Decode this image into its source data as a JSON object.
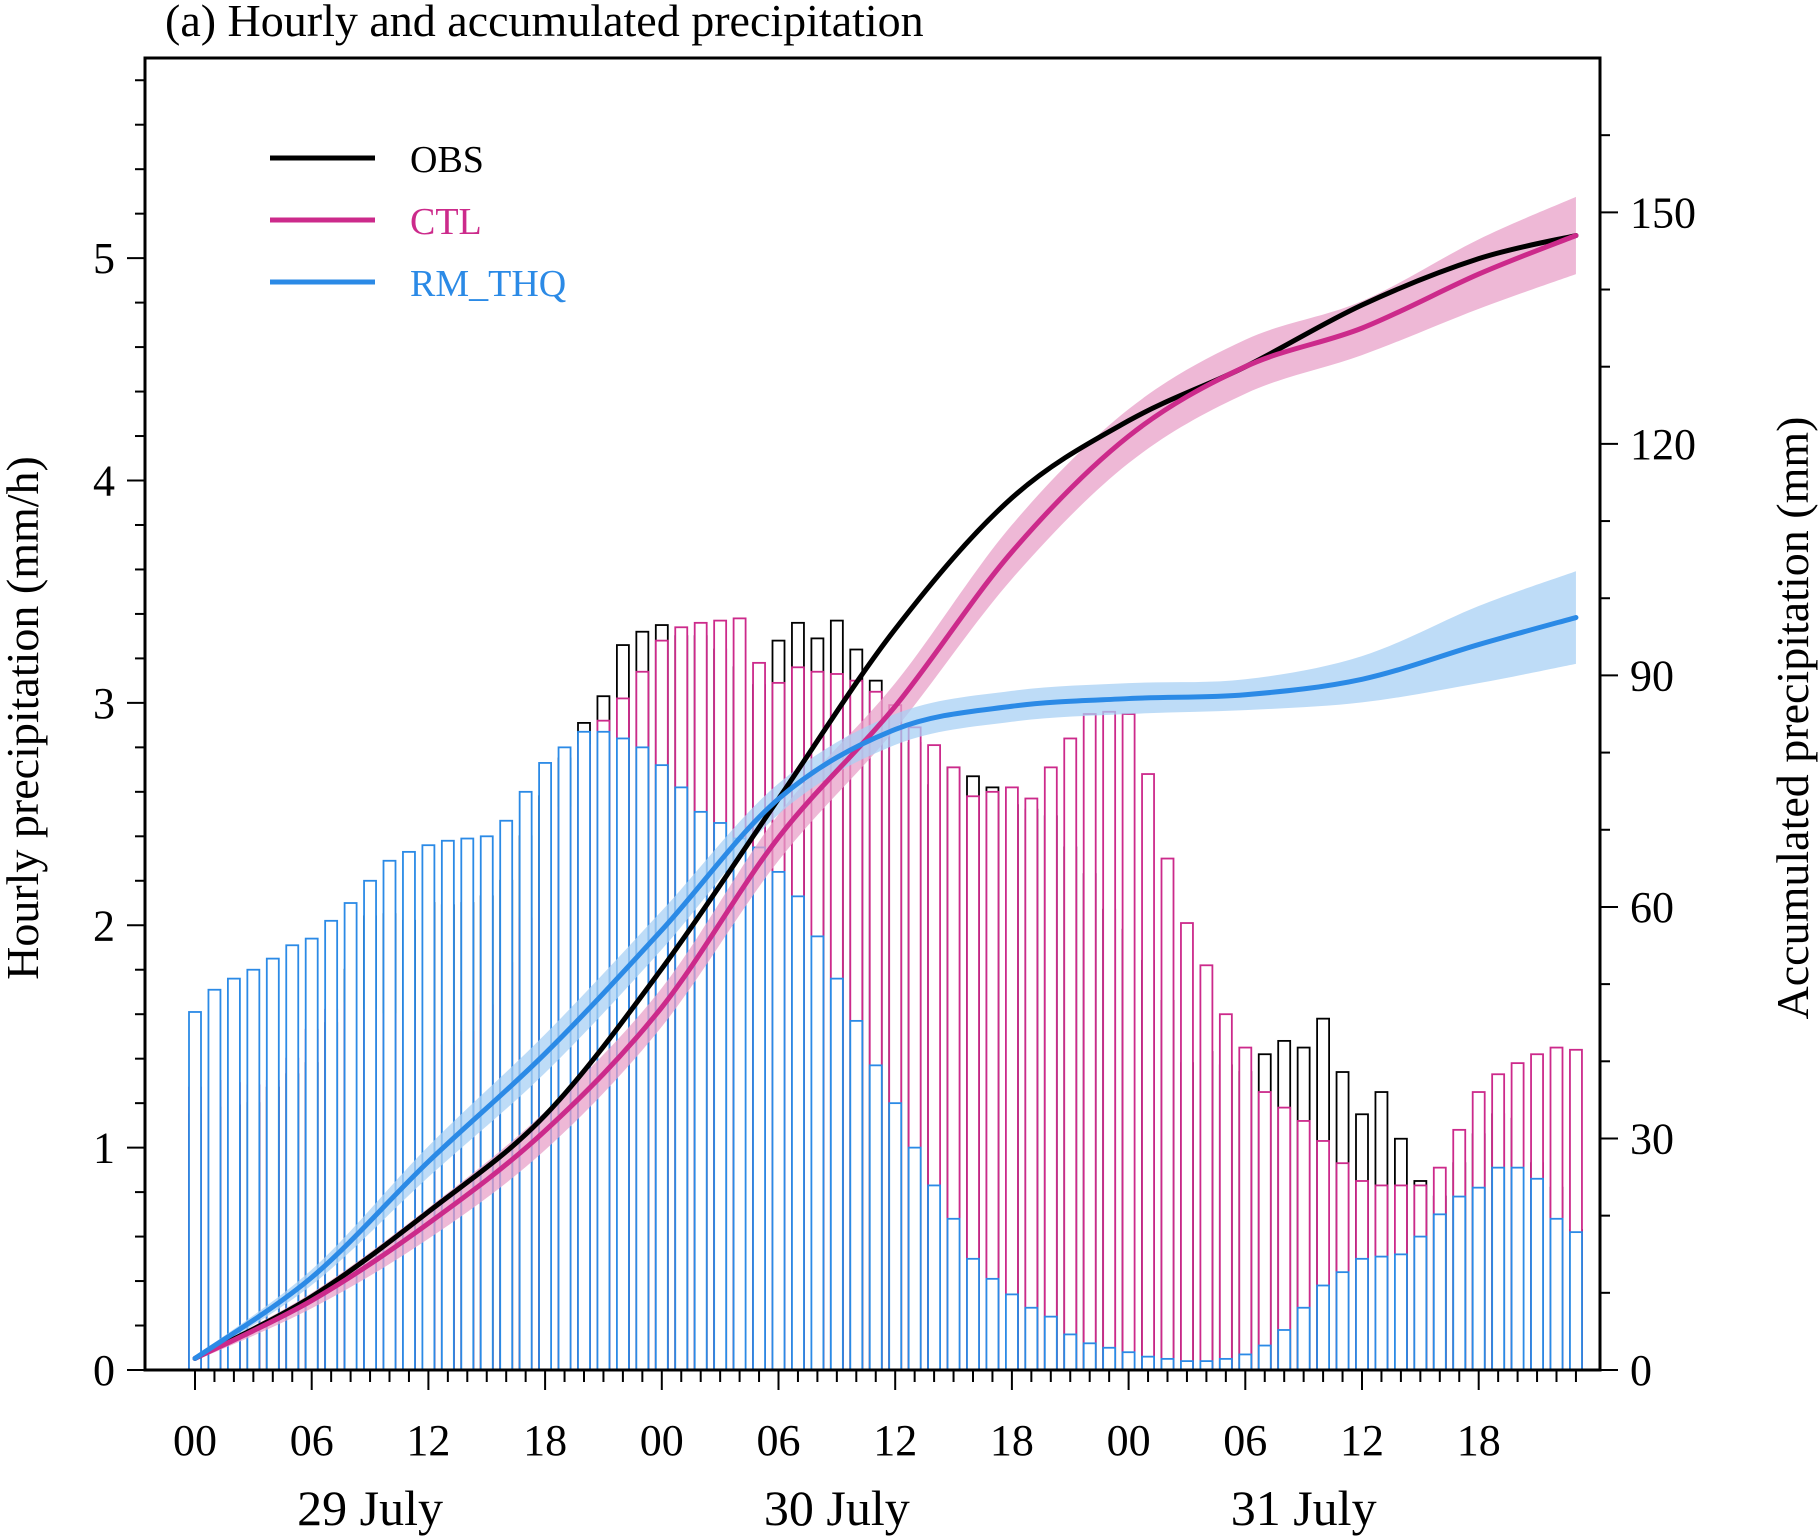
{
  "chart_data": {
    "type": "bar+line",
    "title": "(a) Hourly and accumulated precipitation",
    "ylabel": "Hourly precipitation (mm/h)",
    "y2label": "Accumulated precipitation (mm)",
    "ylim": [
      0,
      5.9
    ],
    "y2lim": [
      0,
      170
    ],
    "yticks": [
      "0",
      "1",
      "2",
      "3",
      "4",
      "5"
    ],
    "y2ticks": [
      "0",
      "30",
      "60",
      "90",
      "120",
      "150"
    ],
    "hour_ticks": [
      "00",
      "06",
      "12",
      "18",
      "00",
      "06",
      "12",
      "18",
      "00",
      "06",
      "12",
      "18"
    ],
    "day_labels": [
      "29 July",
      "30 July",
      "31 July"
    ],
    "legend_placement": "top-left",
    "colors": {
      "OBS": "#000000",
      "CTL": "#cc2a8b",
      "RM_THQ": "#2b8ae6"
    },
    "band_colors": {
      "CTL": "#e8a0c8",
      "RM_THQ": "#a8d0f4"
    },
    "hourly": {
      "OBS": [
        1.15,
        1.18,
        1.19,
        1.2,
        1.27,
        1.33,
        1.38,
        1.56,
        1.8,
        2.04,
        2.05,
        2.02,
        2.1,
        2.09,
        2.1,
        2.13,
        2.2,
        2.4,
        2.58,
        2.75,
        2.91,
        3.03,
        3.26,
        3.32,
        3.35,
        3.3,
        3.3,
        3.24,
        3.16,
        3.08,
        3.28,
        3.36,
        3.29,
        3.37,
        3.24,
        3.1,
        2.95,
        2.82,
        2.63,
        2.71,
        2.67,
        2.62,
        2.54,
        2.52,
        2.49,
        2.35,
        2.23,
        2.07,
        1.98,
        1.84,
        1.66,
        1.38,
        1.43,
        1.37,
        1.34,
        1.42,
        1.48,
        1.45,
        1.58,
        1.34,
        1.15,
        1.25,
        1.04,
        0.85,
        0.78,
        0.93,
        1.06,
        1.15,
        1.13,
        0.93,
        0.82,
        0.63
      ],
      "CTL": [
        1.27,
        1.3,
        1.29,
        1.28,
        1.3,
        1.4,
        1.53,
        1.62,
        1.65,
        1.62,
        1.6,
        1.57,
        1.5,
        1.46,
        1.52,
        1.64,
        1.83,
        2.03,
        2.12,
        2.53,
        2.81,
        2.92,
        3.02,
        3.14,
        3.28,
        3.34,
        3.36,
        3.37,
        3.38,
        3.18,
        3.09,
        3.16,
        3.14,
        3.13,
        3.1,
        3.05,
        2.99,
        2.89,
        2.81,
        2.71,
        2.58,
        2.6,
        2.62,
        2.57,
        2.71,
        2.84,
        2.95,
        2.96,
        2.95,
        2.68,
        2.3,
        2.01,
        1.82,
        1.6,
        1.45,
        1.25,
        1.18,
        1.12,
        1.03,
        0.93,
        0.85,
        0.83,
        0.83,
        0.83,
        0.91,
        1.08,
        1.25,
        1.33,
        1.38,
        1.42,
        1.45,
        1.44
      ],
      "RM_THQ": [
        1.61,
        1.71,
        1.76,
        1.8,
        1.85,
        1.91,
        1.94,
        2.02,
        2.1,
        2.2,
        2.29,
        2.33,
        2.36,
        2.38,
        2.39,
        2.4,
        2.47,
        2.6,
        2.73,
        2.8,
        2.87,
        2.87,
        2.84,
        2.8,
        2.72,
        2.62,
        2.51,
        2.46,
        2.39,
        2.35,
        2.24,
        2.13,
        1.95,
        1.76,
        1.57,
        1.37,
        1.2,
        1.0,
        0.83,
        0.68,
        0.5,
        0.41,
        0.34,
        0.28,
        0.24,
        0.16,
        0.12,
        0.1,
        0.08,
        0.06,
        0.05,
        0.04,
        0.04,
        0.05,
        0.07,
        0.11,
        0.18,
        0.28,
        0.38,
        0.44,
        0.5,
        0.51,
        0.52,
        0.6,
        0.7,
        0.78,
        0.82,
        0.91,
        0.91,
        0.86,
        0.68,
        0.62
      ]
    },
    "accumulated_hours": [
      0,
      6,
      12,
      18,
      24,
      30,
      36,
      42,
      48,
      54,
      60,
      66,
      71
    ],
    "accumulated": {
      "OBS": [
        1.5,
        9.5,
        20.5,
        33,
        52,
        74,
        96,
        113,
        123,
        130,
        138,
        144,
        147
      ],
      "CTL": [
        1.5,
        9,
        19,
        31,
        47,
        69,
        86,
        106,
        121,
        130,
        135,
        142,
        147
      ],
      "RM_THQ": [
        1.5,
        12,
        27,
        41,
        57,
        74,
        83,
        86,
        87,
        87.5,
        89.5,
        94,
        97.5
      ]
    },
    "accumulated_band_halfwidth": {
      "CTL": [
        0.3,
        1,
        2,
        2.5,
        2.5,
        3,
        3,
        3.5,
        3.5,
        3.5,
        3.5,
        4.5,
        5
      ],
      "RM_THQ": [
        0.3,
        1,
        2,
        2.5,
        2.5,
        2,
        2,
        2,
        2,
        2,
        3,
        5,
        6
      ]
    }
  }
}
